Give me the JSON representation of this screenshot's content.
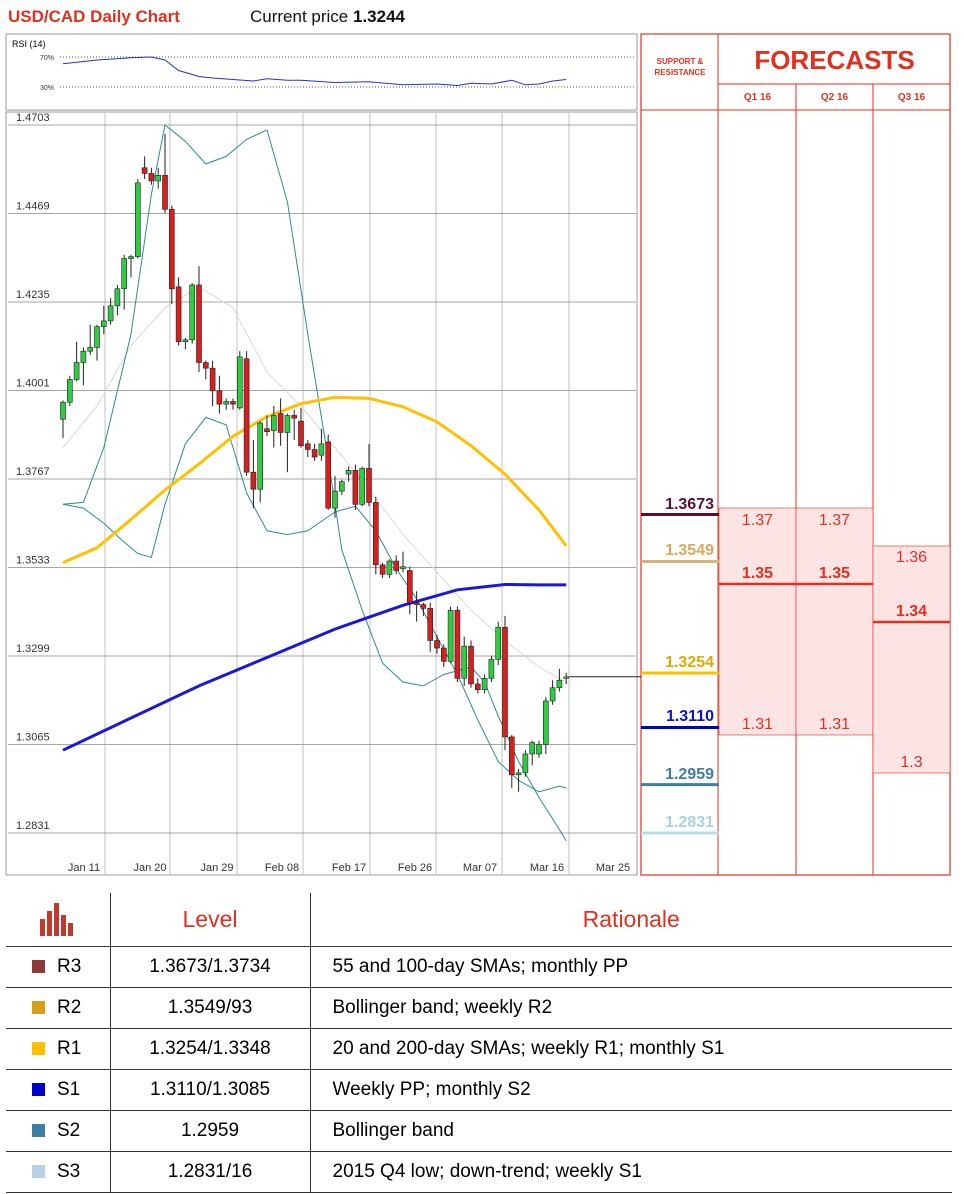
{
  "header": {
    "title": "USD/CAD Daily Chart",
    "current_label": "Current price",
    "current_value": "1.3244"
  },
  "rsi": {
    "label": "RSI (14)",
    "upper": "70%",
    "lower": "30%"
  },
  "chart_data": {
    "type": "candlestick",
    "y_ticks": [
      "1.4703",
      "1.4469",
      "1.4235",
      "1.4001",
      "1.3767",
      "1.3533",
      "1.3299",
      "1.3065",
      "1.2831"
    ],
    "ylim": [
      1.2831,
      1.4703
    ],
    "x_ticks": [
      "Jan 11",
      "Jan 20",
      "Jan 29",
      "Feb 08",
      "Feb 17",
      "Feb 26",
      "Mar 07",
      "Mar 16",
      "Mar 25"
    ],
    "candles": [
      [
        1.3925,
        1.3975,
        1.3875,
        1.397
      ],
      [
        1.397,
        1.404,
        1.396,
        1.403
      ],
      [
        1.403,
        1.413,
        1.4025,
        1.4075
      ],
      [
        1.4075,
        1.4115,
        1.4015,
        1.4105
      ],
      [
        1.4105,
        1.4175,
        1.4095,
        1.4115
      ],
      [
        1.4115,
        1.4175,
        1.408,
        1.417
      ],
      [
        1.417,
        1.4225,
        1.415,
        1.4185
      ],
      [
        1.4185,
        1.4245,
        1.4175,
        1.4225
      ],
      [
        1.4225,
        1.428,
        1.42,
        1.427
      ],
      [
        1.427,
        1.436,
        1.4215,
        1.435
      ],
      [
        1.435,
        1.436,
        1.43,
        1.4355
      ],
      [
        1.4355,
        1.456,
        1.435,
        1.455
      ],
      [
        1.459,
        1.462,
        1.456,
        1.4575
      ],
      [
        1.4575,
        1.459,
        1.4545,
        1.4555
      ],
      [
        1.4555,
        1.459,
        1.4535,
        1.457
      ],
      [
        1.457,
        1.468,
        1.447,
        1.448
      ],
      [
        1.448,
        1.449,
        1.423,
        1.427
      ],
      [
        1.4275,
        1.43,
        1.412,
        1.413
      ],
      [
        1.413,
        1.414,
        1.411,
        1.4135
      ],
      [
        1.4135,
        1.4285,
        1.4125,
        1.428
      ],
      [
        1.428,
        1.433,
        1.405,
        1.4075
      ],
      [
        1.4075,
        1.408,
        1.403,
        1.406
      ],
      [
        1.406,
        1.408,
        1.396,
        1.4
      ],
      [
        1.4,
        1.404,
        1.394,
        1.3965
      ],
      [
        1.3965,
        1.398,
        1.395,
        1.3972
      ],
      [
        1.3972,
        1.398,
        1.395,
        1.3965
      ],
      [
        1.3955,
        1.4105,
        1.395,
        1.409
      ],
      [
        1.4085,
        1.4105,
        1.3775,
        1.3785
      ],
      [
        1.3785,
        1.387,
        1.369,
        1.374
      ],
      [
        1.374,
        1.392,
        1.3705,
        1.3915
      ],
      [
        1.39,
        1.3935,
        1.388,
        1.3892
      ],
      [
        1.3895,
        1.396,
        1.385,
        1.3935
      ],
      [
        1.394,
        1.398,
        1.3855,
        1.389
      ],
      [
        1.389,
        1.394,
        1.3785,
        1.3935
      ],
      [
        1.3935,
        1.395,
        1.387,
        1.3928
      ],
      [
        1.392,
        1.3955,
        1.385,
        1.3855
      ],
      [
        1.386,
        1.387,
        1.3825,
        1.3845
      ],
      [
        1.3845,
        1.386,
        1.3815,
        1.3825
      ],
      [
        1.383,
        1.39,
        1.3815,
        1.386
      ],
      [
        1.3865,
        1.3885,
        1.3685,
        1.369
      ],
      [
        1.369,
        1.3775,
        1.3665,
        1.3735
      ],
      [
        1.3735,
        1.3765,
        1.3725,
        1.376
      ],
      [
        1.378,
        1.38,
        1.376,
        1.379
      ],
      [
        1.379,
        1.3805,
        1.3685,
        1.37
      ],
      [
        1.37,
        1.38,
        1.3695,
        1.3795
      ],
      [
        1.3795,
        1.386,
        1.3695,
        1.3705
      ],
      [
        1.3705,
        1.372,
        1.3515,
        1.354
      ],
      [
        1.354,
        1.3545,
        1.3505,
        1.3515
      ],
      [
        1.3515,
        1.3555,
        1.3505,
        1.355
      ],
      [
        1.355,
        1.3565,
        1.3515,
        1.3525
      ],
      [
        1.353,
        1.3575,
        1.352,
        1.3535
      ],
      [
        1.3525,
        1.3535,
        1.341,
        1.344
      ],
      [
        1.344,
        1.347,
        1.339,
        1.3435
      ],
      [
        1.3435,
        1.344,
        1.3405,
        1.3425
      ],
      [
        1.3425,
        1.344,
        1.331,
        1.334
      ],
      [
        1.334,
        1.3355,
        1.3305,
        1.332
      ],
      [
        1.332,
        1.333,
        1.327,
        1.3285
      ],
      [
        1.3285,
        1.343,
        1.328,
        1.342
      ],
      [
        1.342,
        1.343,
        1.323,
        1.324
      ],
      [
        1.324,
        1.335,
        1.322,
        1.3325
      ],
      [
        1.3325,
        1.334,
        1.3215,
        1.3225
      ],
      [
        1.3225,
        1.324,
        1.32,
        1.321
      ],
      [
        1.321,
        1.325,
        1.32,
        1.324
      ],
      [
        1.324,
        1.33,
        1.323,
        1.329
      ],
      [
        1.329,
        1.339,
        1.3275,
        1.3375
      ],
      [
        1.3375,
        1.3405,
        1.305,
        1.3085
      ],
      [
        1.3085,
        1.309,
        1.295,
        1.2985
      ],
      [
        1.2985,
        1.3,
        1.294,
        1.299
      ],
      [
        1.299,
        1.305,
        1.298,
        1.304
      ],
      [
        1.304,
        1.3075,
        1.301,
        1.307
      ],
      [
        1.304,
        1.3075,
        1.303,
        1.3065
      ],
      [
        1.3065,
        1.319,
        1.304,
        1.318
      ],
      [
        1.318,
        1.3235,
        1.317,
        1.3215
      ],
      [
        1.3215,
        1.3265,
        1.3205,
        1.3235
      ],
      [
        1.324,
        1.3255,
        1.3225,
        1.3244
      ]
    ],
    "sma_100": [
      [
        0,
        1.3546
      ],
      [
        5,
        1.3585
      ],
      [
        10,
        1.366
      ],
      [
        15,
        1.3738
      ],
      [
        20,
        1.3807
      ],
      [
        25,
        1.388
      ],
      [
        30,
        1.3932
      ],
      [
        35,
        1.3966
      ],
      [
        40,
        1.3983
      ],
      [
        45,
        1.398
      ],
      [
        50,
        1.3958
      ],
      [
        55,
        1.3918
      ],
      [
        60,
        1.3855
      ],
      [
        65,
        1.378
      ],
      [
        70,
        1.3685
      ],
      [
        74,
        1.359
      ]
    ],
    "sma_200": [
      [
        0,
        1.305
      ],
      [
        10,
        1.3135
      ],
      [
        20,
        1.322
      ],
      [
        30,
        1.3295
      ],
      [
        40,
        1.337
      ],
      [
        50,
        1.3433
      ],
      [
        58,
        1.3474
      ],
      [
        65,
        1.3488
      ],
      [
        70,
        1.3487
      ],
      [
        74,
        1.3487
      ]
    ],
    "bb_upper": [
      [
        0,
        1.37
      ],
      [
        3,
        1.3705
      ],
      [
        6,
        1.385
      ],
      [
        10,
        1.415
      ],
      [
        13,
        1.452
      ],
      [
        15,
        1.4703
      ],
      [
        18,
        1.466
      ],
      [
        21,
        1.46
      ],
      [
        24,
        1.462
      ],
      [
        27,
        1.4665
      ],
      [
        30,
        1.469
      ],
      [
        33,
        1.45
      ],
      [
        36,
        1.415
      ],
      [
        39,
        1.382
      ],
      [
        41,
        1.358
      ],
      [
        44,
        1.342
      ],
      [
        47,
        1.328
      ],
      [
        50,
        1.323
      ],
      [
        53,
        1.322
      ],
      [
        56,
        1.325
      ],
      [
        60,
        1.327
      ],
      [
        62,
        1.323
      ],
      [
        64,
        1.314
      ],
      [
        67,
        1.302
      ],
      [
        70,
        1.2925
      ],
      [
        73,
        1.284
      ],
      [
        74,
        1.281
      ]
    ],
    "bb_lower": [
      [
        0,
        1.37
      ],
      [
        3,
        1.369
      ],
      [
        6,
        1.365
      ],
      [
        9,
        1.36
      ],
      [
        11,
        1.357
      ],
      [
        13,
        1.356
      ],
      [
        15,
        1.37
      ],
      [
        18,
        1.386
      ],
      [
        21,
        1.393
      ],
      [
        24,
        1.391
      ],
      [
        27,
        1.373
      ],
      [
        30,
        1.363
      ],
      [
        33,
        1.362
      ],
      [
        36,
        1.363
      ],
      [
        40,
        1.368
      ],
      [
        43,
        1.3695
      ],
      [
        46,
        1.363
      ],
      [
        49,
        1.353
      ],
      [
        52,
        1.345
      ],
      [
        55,
        1.335
      ],
      [
        58,
        1.325
      ],
      [
        61,
        1.313
      ],
      [
        64,
        1.302
      ],
      [
        67,
        1.297
      ],
      [
        70,
        1.294
      ],
      [
        73,
        1.2955
      ],
      [
        74,
        1.295
      ]
    ],
    "sma_20": [
      [
        0,
        1.385
      ],
      [
        5,
        1.396
      ],
      [
        10,
        1.412
      ],
      [
        15,
        1.422
      ],
      [
        20,
        1.4275
      ],
      [
        25,
        1.422
      ],
      [
        30,
        1.405
      ],
      [
        35,
        1.396
      ],
      [
        40,
        1.385
      ],
      [
        45,
        1.374
      ],
      [
        50,
        1.362
      ],
      [
        55,
        1.352
      ],
      [
        60,
        1.342
      ],
      [
        65,
        1.334
      ],
      [
        70,
        1.327
      ],
      [
        74,
        1.323
      ]
    ],
    "rsi_series": [
      [
        0,
        61
      ],
      [
        5,
        66
      ],
      [
        10,
        69
      ],
      [
        13,
        70
      ],
      [
        15,
        66
      ],
      [
        17,
        52
      ],
      [
        20,
        44
      ],
      [
        22,
        42
      ],
      [
        25,
        40
      ],
      [
        28,
        38
      ],
      [
        30,
        41
      ],
      [
        33,
        39
      ],
      [
        35,
        39
      ],
      [
        40,
        36
      ],
      [
        45,
        37
      ],
      [
        50,
        33
      ],
      [
        55,
        34
      ],
      [
        58,
        32
      ],
      [
        60,
        35
      ],
      [
        63,
        34
      ],
      [
        66,
        39
      ],
      [
        68,
        33
      ],
      [
        70,
        34
      ],
      [
        72,
        38
      ],
      [
        74,
        40
      ]
    ]
  },
  "levels_chart": [
    {
      "value": 1.3673,
      "label": "1.3673",
      "color": "#5a1030",
      "text_color": "#5a1030"
    },
    {
      "value": 1.3549,
      "label": "1.3549",
      "color": "#d9b27a",
      "text_color": "#d6a85c"
    },
    {
      "value": 1.3254,
      "label": "1.3254",
      "color": "#ffc000",
      "text_color": "#e0aa00"
    },
    {
      "value": 1.311,
      "label": "1.3110",
      "color": "#0000cc",
      "text_color": "#1010cc"
    },
    {
      "value": 1.2959,
      "label": "1.2959",
      "color": "#3d7ea6",
      "text_color": "#3d7ea6"
    },
    {
      "value": 1.2831,
      "label": "1.2831",
      "color": "#b7dde6",
      "text_color": "#a9d3dc"
    }
  ],
  "forecast": {
    "title": "FORECASTS",
    "sr_label": "SUPPORT & RESISTANCE",
    "quarters": [
      "Q1 16",
      "Q2 16",
      "Q3 16"
    ],
    "q1": {
      "high": "1.37",
      "mid": "1.35",
      "low": "1.31"
    },
    "q2": {
      "high": "1.37",
      "mid": "1.35",
      "low": "1.31"
    },
    "q3": {
      "high": "1.36",
      "mid": "1.34",
      "low": "1.3"
    }
  },
  "table": {
    "col_level": "Level",
    "col_rationale": "Rationale",
    "rows": [
      {
        "tag": "R3",
        "level": "1.3673/1.3734",
        "rationale": "55 and 100-day SMAs; monthly PP",
        "color": "#8b3a3a"
      },
      {
        "tag": "R2",
        "level": "1.3549/93",
        "rationale": "Bollinger band; weekly R2",
        "color": "#d4a017"
      },
      {
        "tag": "R1",
        "level": "1.3254/1.3348",
        "rationale": "20 and 200-day SMAs; weekly R1; monthly S1",
        "color": "#ffc000"
      },
      {
        "tag": "S1",
        "level": "1.3110/1.3085",
        "rationale": "Weekly PP; monthly S2",
        "color": "#0000cc"
      },
      {
        "tag": "S2",
        "level": "1.2959",
        "rationale": "Bollinger band",
        "color": "#3d7ea6"
      },
      {
        "tag": "S3",
        "level": "1.2831/16",
        "rationale": "2015 Q4 low; down-trend; weekly S1",
        "color": "#b7d0e6"
      }
    ]
  }
}
